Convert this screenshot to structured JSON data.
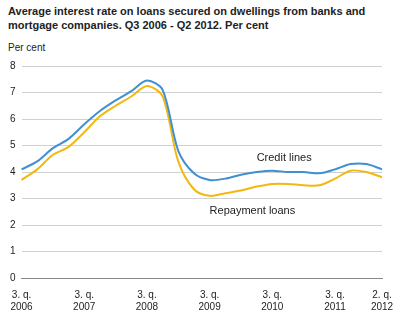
{
  "chart_data": {
    "type": "line",
    "title": "Average interest rate on loans secured on dwellings from banks and mortgage companies. Q3 2006 - Q2 2012. Per cent",
    "ylabel": "Per cent",
    "categories": [
      "3. q. 2006",
      null,
      null,
      null,
      "3. q. 2007",
      null,
      null,
      null,
      "3. q. 2008",
      null,
      null,
      null,
      "3. q. 2009",
      null,
      null,
      null,
      "3. q. 2010",
      null,
      null,
      null,
      "3. q. 2011",
      null,
      null,
      "2. q. 2012"
    ],
    "series": [
      {
        "name": "Credit lines",
        "color": "#3f8fd2",
        "values": [
          4.1,
          4.4,
          4.9,
          5.25,
          5.8,
          6.3,
          6.7,
          7.05,
          7.45,
          7.1,
          4.8,
          3.95,
          3.7,
          3.75,
          3.9,
          4.0,
          4.05,
          4.0,
          4.0,
          3.95,
          4.1,
          4.3,
          4.3,
          4.1
        ]
      },
      {
        "name": "Repayment loans",
        "color": "#f2b80f",
        "values": [
          3.7,
          4.1,
          4.65,
          4.95,
          5.5,
          6.1,
          6.5,
          6.85,
          7.25,
          6.85,
          4.4,
          3.35,
          3.1,
          3.2,
          3.3,
          3.45,
          3.55,
          3.55,
          3.5,
          3.5,
          3.75,
          4.05,
          4.0,
          3.8
        ]
      }
    ],
    "ylim": [
      0,
      8
    ],
    "yticks": [
      0,
      1,
      2,
      3,
      4,
      5,
      6,
      7,
      8
    ],
    "grid": true
  }
}
